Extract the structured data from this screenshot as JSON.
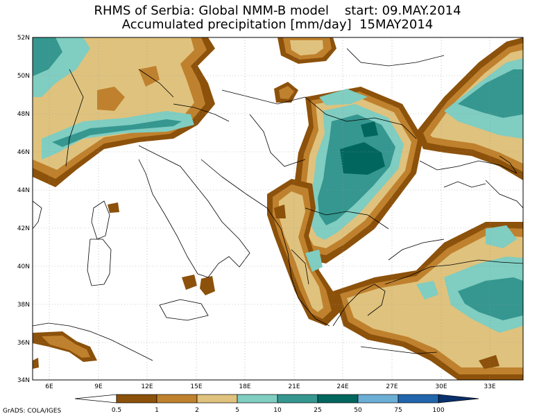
{
  "title_line1": "RHMS of Serbia: Global NMM-B model    start: 09.MAY.2014",
  "title_line2": "Accumulated precipitation [mm/day]  15MAY2014",
  "credit": "GrADS: COLA/IGES",
  "lat_labels": [
    "52N",
    "50N",
    "48N",
    "46N",
    "44N",
    "42N",
    "40N",
    "38N",
    "36N",
    "34N"
  ],
  "lon_labels": [
    "6E",
    "9E",
    "12E",
    "15E",
    "18E",
    "21E",
    "24E",
    "27E",
    "30E",
    "33E"
  ],
  "colorbar": {
    "labels": [
      "0.5",
      "1",
      "2",
      "5",
      "10",
      "25",
      "50",
      "75",
      "100"
    ],
    "colors": [
      "#ffffff",
      "#8c510a",
      "#bf812d",
      "#dfc27d",
      "#80cdc1",
      "#35978f",
      "#01665e",
      "#6baed6",
      "#2166ac",
      "#08306b"
    ]
  }
}
